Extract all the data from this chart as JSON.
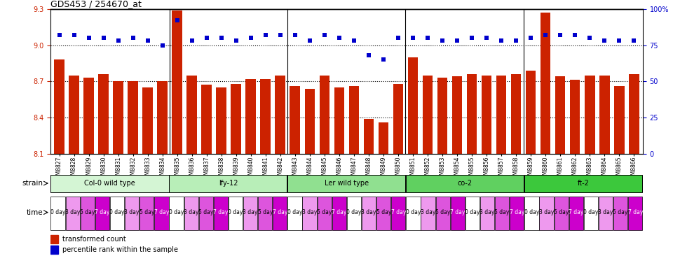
{
  "title": "GDS453 / 254670_at",
  "ylim": [
    8.1,
    9.3
  ],
  "yticks": [
    8.1,
    8.4,
    8.7,
    9.0,
    9.3
  ],
  "right_yticks": [
    0,
    25,
    50,
    75,
    100
  ],
  "right_ylabels": [
    "0",
    "25",
    "50",
    "75",
    "100%"
  ],
  "bar_color": "#cc2200",
  "dot_color": "#0000cc",
  "bar_width": 0.7,
  "samples": [
    "GSM8827",
    "GSM8828",
    "GSM8829",
    "GSM8830",
    "GSM8831",
    "GSM8832",
    "GSM8833",
    "GSM8834",
    "GSM8835",
    "GSM8836",
    "GSM8837",
    "GSM8838",
    "GSM8839",
    "GSM8840",
    "GSM8841",
    "GSM8842",
    "GSM8843",
    "GSM8844",
    "GSM8845",
    "GSM8846",
    "GSM8847",
    "GSM8848",
    "GSM8849",
    "GSM8850",
    "GSM8851",
    "GSM8852",
    "GSM8853",
    "GSM8854",
    "GSM8855",
    "GSM8856",
    "GSM8857",
    "GSM8858",
    "GSM8859",
    "GSM8860",
    "GSM8861",
    "GSM8862",
    "GSM8863",
    "GSM8864",
    "GSM8865",
    "GSM8866"
  ],
  "bar_values": [
    8.88,
    8.75,
    8.73,
    8.76,
    8.7,
    8.7,
    8.65,
    8.7,
    9.29,
    8.75,
    8.67,
    8.65,
    8.68,
    8.72,
    8.72,
    8.75,
    8.66,
    8.64,
    8.75,
    8.65,
    8.66,
    8.39,
    8.36,
    8.68,
    8.9,
    8.75,
    8.73,
    8.74,
    8.76,
    8.75,
    8.75,
    8.76,
    8.79,
    9.27,
    8.74,
    8.71,
    8.75,
    8.75,
    8.66,
    8.76
  ],
  "dot_values_pct": [
    82,
    82,
    80,
    80,
    78,
    80,
    78,
    75,
    92,
    78,
    80,
    80,
    78,
    80,
    82,
    82,
    82,
    78,
    82,
    80,
    78,
    68,
    65,
    80,
    80,
    80,
    78,
    78,
    80,
    80,
    78,
    78,
    80,
    82,
    82,
    82,
    80,
    78,
    78,
    78
  ],
  "strains": [
    {
      "label": "Col-0 wild type",
      "start": 0,
      "end": 8,
      "color": "#d4f5d4"
    },
    {
      "label": "lfy-12",
      "start": 8,
      "end": 16,
      "color": "#b8eeb8"
    },
    {
      "label": "Ler wild type",
      "start": 16,
      "end": 24,
      "color": "#90e090"
    },
    {
      "label": "co-2",
      "start": 24,
      "end": 32,
      "color": "#60d060"
    },
    {
      "label": "ft-2",
      "start": 32,
      "end": 40,
      "color": "#3cc83c"
    }
  ],
  "time_labels": [
    "0 day",
    "3 day",
    "5 day",
    "7 day"
  ],
  "cell_colors": [
    "#ffffff",
    "#ee99ee",
    "#dd55dd",
    "#cc00cc"
  ],
  "cell_text_colors": [
    "#000000",
    "#000000",
    "#000000",
    "#ffffff"
  ],
  "grid_lines": [
    9.0,
    8.7,
    8.4
  ],
  "tick_label_color_left": "#cc2200",
  "tick_label_color_right": "#0000cc",
  "legend_bar_label": "transformed count",
  "legend_dot_label": "percentile rank within the sample",
  "strain_row_label": "strain",
  "time_row_label": "time"
}
